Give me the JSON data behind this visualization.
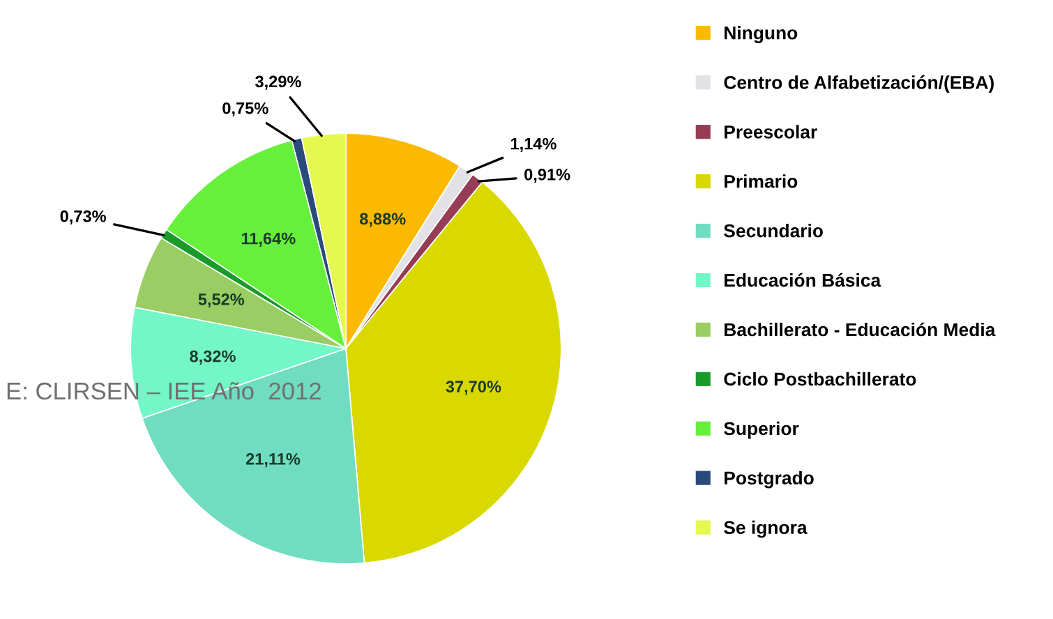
{
  "chart_data": {
    "type": "pie",
    "categories": [
      "Ninguno",
      "Centro de Alfabetización/(EBA)",
      "Preescolar",
      "Primario",
      "Secundario",
      "Educación Básica",
      "Bachillerato - Educación Media",
      "Ciclo Postbachillerato",
      "Superior",
      "Postgrado",
      "Se ignora"
    ],
    "values": [
      8.88,
      1.14,
      0.91,
      37.7,
      21.11,
      8.32,
      5.52,
      0.73,
      11.64,
      0.75,
      3.29
    ],
    "value_labels": [
      "8,88%",
      "1,14%",
      "0,91%",
      "37,70%",
      "21,11%",
      "8,32%",
      "5,52%",
      "0,73%",
      "11,64%",
      "0,75%",
      "3,29%"
    ],
    "colors": [
      "#fbb900",
      "#e2e2e6",
      "#963d55",
      "#d9d900",
      "#70dcc0",
      "#74f7c8",
      "#9acd64",
      "#1a9a2a",
      "#66f03c",
      "#2a4a7c",
      "#e4f850"
    ],
    "legend": "right",
    "annotations": [
      "E: CLIRSEN – IEE Año  2012"
    ]
  }
}
